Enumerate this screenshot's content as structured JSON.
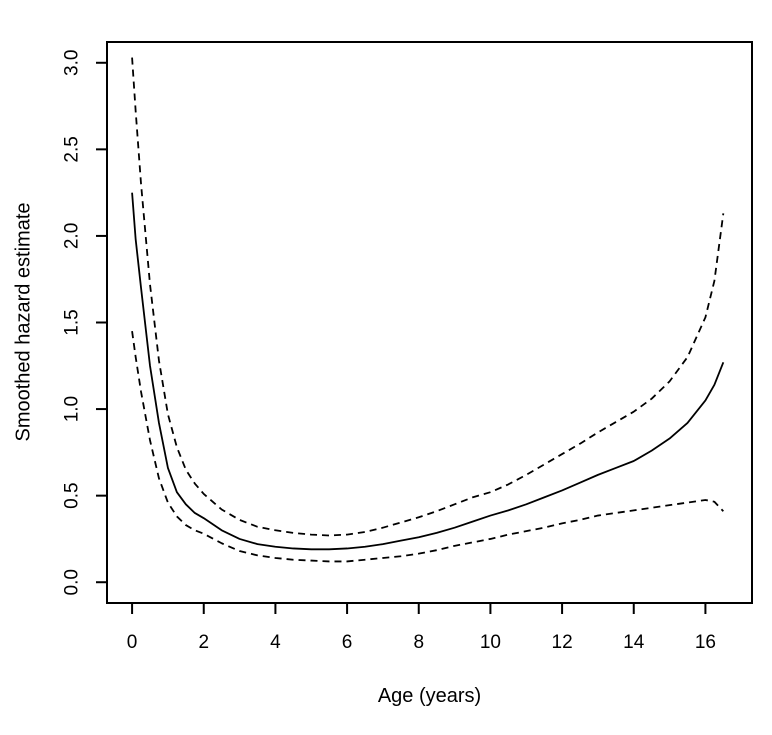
{
  "chart_data": {
    "type": "line",
    "title": "",
    "xlabel": "Age (years)",
    "ylabel": "Smoothed hazard estimate",
    "grid": false,
    "legend": "none",
    "x_ticks": [
      0,
      2,
      4,
      6,
      8,
      10,
      12,
      14,
      16
    ],
    "y_ticks": [
      0.0,
      0.5,
      1.0,
      1.5,
      2.0,
      2.5,
      3.0
    ],
    "xlim": [
      -0.7,
      17.3
    ],
    "ylim": [
      -0.12,
      3.12
    ],
    "line_color": "#000000",
    "x": [
      0,
      0.1,
      0.25,
      0.5,
      0.75,
      1,
      1.25,
      1.5,
      1.75,
      2,
      2.5,
      3,
      3.5,
      4,
      4.5,
      5,
      5.5,
      6,
      6.5,
      7,
      7.5,
      8,
      8.5,
      9,
      9.5,
      10,
      10.5,
      11,
      11.5,
      12,
      12.5,
      13,
      13.5,
      14,
      14.5,
      15,
      15.5,
      16,
      16.25,
      16.5
    ],
    "series": [
      {
        "name": "hazard estimate",
        "style": "solid",
        "values": [
          2.25,
          1.98,
          1.7,
          1.25,
          0.92,
          0.66,
          0.52,
          0.45,
          0.4,
          0.37,
          0.3,
          0.25,
          0.22,
          0.205,
          0.195,
          0.19,
          0.19,
          0.195,
          0.205,
          0.22,
          0.24,
          0.26,
          0.285,
          0.315,
          0.35,
          0.385,
          0.415,
          0.45,
          0.49,
          0.53,
          0.575,
          0.62,
          0.66,
          0.7,
          0.76,
          0.83,
          0.92,
          1.05,
          1.14,
          1.27
        ]
      },
      {
        "name": "upper confidence band",
        "style": "dashed",
        "values": [
          3.03,
          2.72,
          2.3,
          1.72,
          1.28,
          0.97,
          0.78,
          0.65,
          0.57,
          0.51,
          0.42,
          0.36,
          0.32,
          0.3,
          0.285,
          0.275,
          0.27,
          0.275,
          0.29,
          0.315,
          0.345,
          0.375,
          0.41,
          0.45,
          0.49,
          0.52,
          0.565,
          0.62,
          0.68,
          0.74,
          0.8,
          0.865,
          0.925,
          0.985,
          1.06,
          1.16,
          1.3,
          1.53,
          1.74,
          2.13
        ]
      },
      {
        "name": "lower confidence band",
        "style": "dashed",
        "values": [
          1.45,
          1.3,
          1.1,
          0.82,
          0.6,
          0.46,
          0.38,
          0.33,
          0.3,
          0.28,
          0.225,
          0.18,
          0.155,
          0.14,
          0.13,
          0.125,
          0.12,
          0.12,
          0.13,
          0.14,
          0.15,
          0.165,
          0.185,
          0.21,
          0.23,
          0.25,
          0.275,
          0.295,
          0.315,
          0.34,
          0.36,
          0.385,
          0.4,
          0.415,
          0.43,
          0.445,
          0.46,
          0.475,
          0.465,
          0.41
        ]
      }
    ]
  }
}
